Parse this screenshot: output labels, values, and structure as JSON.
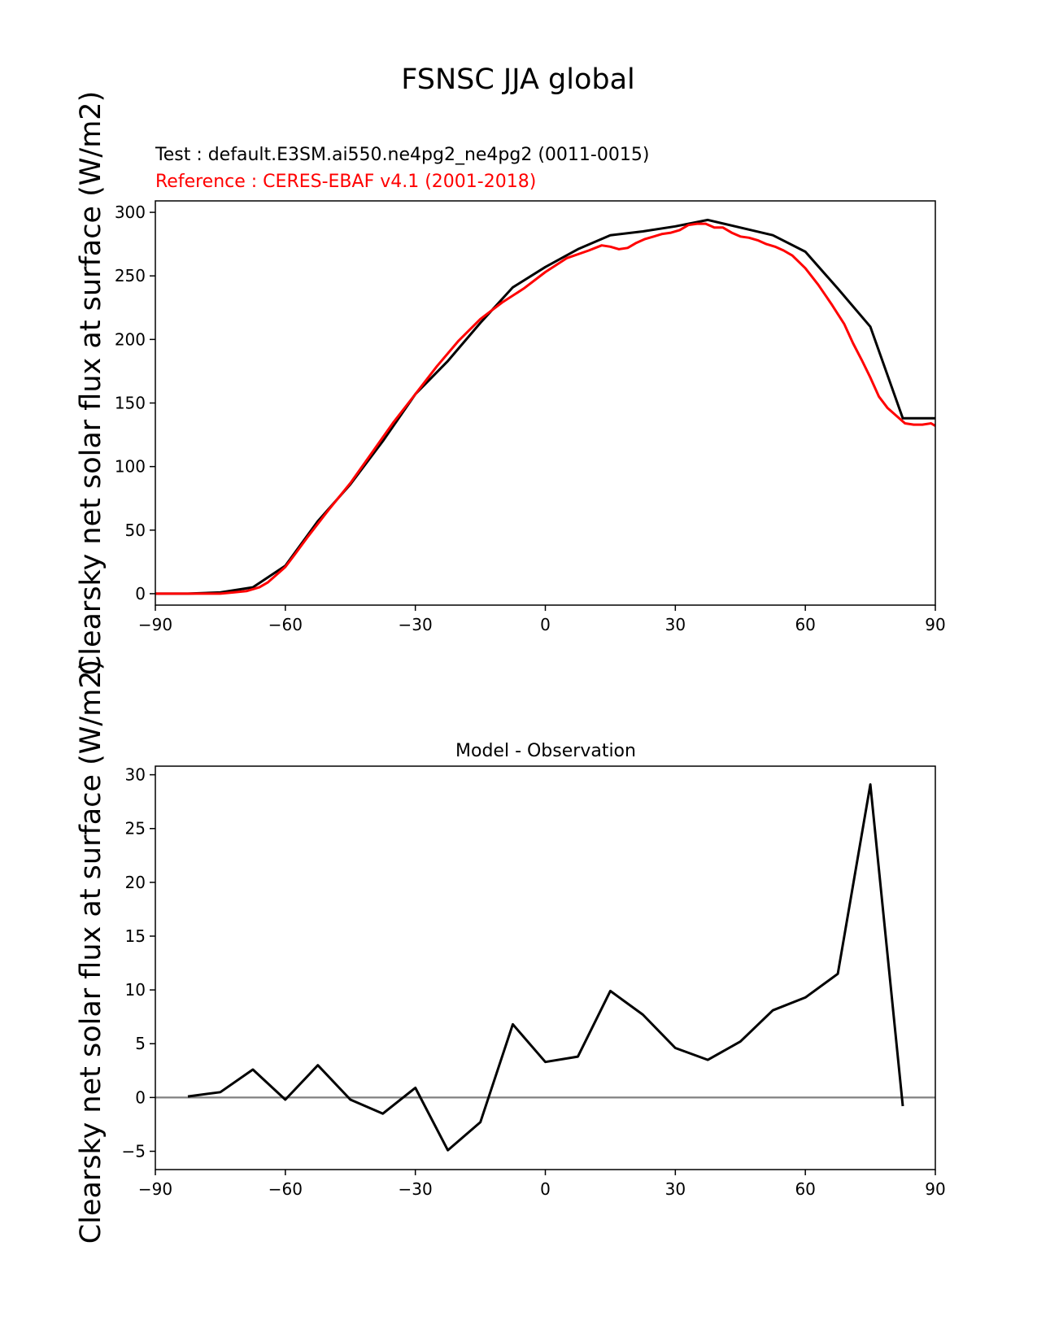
{
  "figure": {
    "title": "FSNSC JJA global",
    "ylabel": "Clearsky net solar flux at surface (W/m2)"
  },
  "colors": {
    "test": "#000000",
    "reference": "#ff0000",
    "zero_line": "#808080"
  },
  "chart_data": [
    {
      "type": "line",
      "test_label": "Test : default.E3SM.ai550.ne4pg2_ne4pg2 (0011-0015)",
      "reference_label": "Reference : CERES-EBAF v4.1 (2001-2018)",
      "xlim": [
        -90,
        90
      ],
      "ylim": [
        -9,
        309
      ],
      "xticks": [
        -90,
        -60,
        -30,
        0,
        30,
        60,
        90
      ],
      "yticks": [
        0,
        50,
        100,
        150,
        200,
        250,
        300
      ],
      "series": [
        {
          "x": [
            -90,
            -82.5,
            -75,
            -67.5,
            -60,
            -52.5,
            -45,
            -37.5,
            -30,
            -22.5,
            -15,
            -7.5,
            0,
            7.5,
            15,
            22.5,
            30,
            37.5,
            45,
            52.5,
            60,
            67.5,
            75,
            82.5,
            90
          ],
          "values": [
            0,
            0,
            1,
            5,
            22,
            57,
            86,
            120,
            157,
            183,
            213,
            241,
            257,
            271,
            282,
            285,
            289,
            294,
            288,
            282,
            269,
            240,
            210,
            138,
            138
          ]
        },
        {
          "x": [
            -90,
            -85,
            -80,
            -75,
            -72,
            -69,
            -66,
            -64,
            -62,
            -60,
            -58,
            -55,
            -50,
            -45,
            -40,
            -35,
            -30,
            -25,
            -20,
            -15,
            -10,
            -5,
            0,
            5,
            10,
            13,
            15,
            17,
            19,
            21,
            23,
            25,
            27,
            29,
            31,
            33,
            35,
            37,
            39,
            41,
            43,
            45,
            47,
            49,
            51,
            53,
            55,
            57,
            60,
            63,
            66,
            69,
            71,
            73,
            75,
            77,
            79,
            81,
            83,
            85,
            87,
            89,
            90
          ],
          "values": [
            0,
            0,
            0,
            0,
            1,
            2,
            5,
            9,
            15,
            21,
            30,
            44,
            66,
            87,
            111,
            135,
            157,
            179,
            199,
            216,
            229,
            240,
            253,
            264,
            270,
            274,
            273,
            271,
            272,
            276,
            279,
            281,
            283,
            284,
            286,
            290,
            291,
            291,
            288,
            288,
            284,
            281,
            280,
            278,
            275,
            273,
            270,
            266,
            256,
            243,
            228,
            212,
            197,
            184,
            170,
            155,
            146,
            140,
            134,
            133,
            133,
            134,
            132
          ]
        }
      ]
    },
    {
      "type": "line",
      "title": "Model - Observation",
      "xlim": [
        -90,
        90
      ],
      "ylim": [
        -6.7,
        30.8
      ],
      "xticks": [
        -90,
        -60,
        -30,
        0,
        30,
        60,
        90
      ],
      "yticks": [
        -5,
        0,
        5,
        10,
        15,
        20,
        25,
        30
      ],
      "zero_line": 0,
      "series": [
        {
          "x": [
            -82.5,
            -75,
            -67.5,
            -60,
            -52.5,
            -45,
            -37.5,
            -30,
            -22.5,
            -15,
            -7.5,
            0,
            7.5,
            15,
            22.5,
            30,
            37.5,
            45,
            52.5,
            60,
            67.5,
            75,
            82.5
          ],
          "values": [
            0.1,
            0.5,
            2.6,
            -0.2,
            3.0,
            -0.2,
            -1.5,
            0.9,
            -4.9,
            -2.3,
            6.8,
            3.3,
            3.8,
            9.9,
            7.7,
            4.6,
            3.5,
            5.2,
            8.1,
            9.3,
            11.5,
            29.1,
            -0.8
          ]
        }
      ]
    }
  ]
}
